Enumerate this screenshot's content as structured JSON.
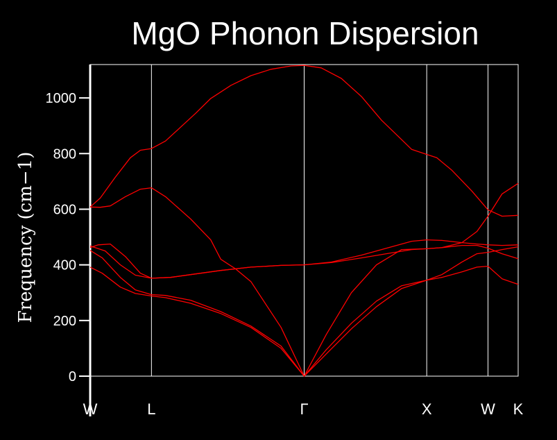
{
  "chart_data": {
    "type": "line",
    "title": "MgO Phonon Dispersion",
    "ylabel": "Frequency (cm−1)",
    "xlabel": "",
    "ylim": [
      0,
      1120
    ],
    "yticks": [
      0,
      200,
      400,
      600,
      800,
      1000
    ],
    "grid": false,
    "background": "#000000",
    "axis_color": "#ffffff",
    "line_color": "#ff0000",
    "high_symmetry_points": [
      {
        "label": "W",
        "x": 0.0
      },
      {
        "label": "L",
        "x": 0.61
      },
      {
        "label": "Γ",
        "x": 2.13
      },
      {
        "label": "X",
        "x": 3.35
      },
      {
        "label": "W",
        "x": 3.96
      },
      {
        "label": "K",
        "x": 4.26
      }
    ],
    "xlim": [
      0.0,
      4.26
    ],
    "series": [
      {
        "values": [
          [
            0.0,
            392
          ],
          [
            0.12,
            370
          ],
          [
            0.3,
            320
          ],
          [
            0.45,
            297
          ],
          [
            0.61,
            288
          ],
          [
            0.75,
            282
          ],
          [
            1.0,
            262
          ],
          [
            1.3,
            225
          ],
          [
            1.6,
            175
          ],
          [
            1.9,
            100
          ],
          [
            2.13,
            0
          ],
          [
            2.35,
            80
          ],
          [
            2.6,
            170
          ],
          [
            2.85,
            250
          ],
          [
            3.1,
            315
          ],
          [
            3.35,
            345
          ],
          [
            3.5,
            355
          ],
          [
            3.7,
            375
          ],
          [
            3.85,
            392
          ],
          [
            3.96,
            395
          ],
          [
            4.1,
            350
          ],
          [
            4.26,
            330
          ]
        ]
      },
      {
        "values": [
          [
            0.0,
            452
          ],
          [
            0.12,
            425
          ],
          [
            0.3,
            355
          ],
          [
            0.45,
            310
          ],
          [
            0.61,
            293
          ],
          [
            0.75,
            290
          ],
          [
            1.0,
            273
          ],
          [
            1.3,
            232
          ],
          [
            1.6,
            180
          ],
          [
            1.9,
            108
          ],
          [
            2.13,
            0
          ],
          [
            2.35,
            95
          ],
          [
            2.6,
            190
          ],
          [
            2.85,
            270
          ],
          [
            3.1,
            325
          ],
          [
            3.35,
            345
          ],
          [
            3.5,
            365
          ],
          [
            3.7,
            410
          ],
          [
            3.85,
            440
          ],
          [
            3.96,
            445
          ],
          [
            4.1,
            455
          ],
          [
            4.26,
            465
          ]
        ]
      },
      {
        "values": [
          [
            0.0,
            468
          ],
          [
            0.15,
            450
          ],
          [
            0.3,
            400
          ],
          [
            0.45,
            363
          ],
          [
            0.61,
            352
          ],
          [
            0.8,
            355
          ],
          [
            1.0,
            365
          ],
          [
            1.3,
            380
          ],
          [
            1.6,
            392
          ],
          [
            1.9,
            398
          ],
          [
            2.13,
            400
          ],
          [
            2.4,
            408
          ],
          [
            2.7,
            425
          ],
          [
            3.0,
            443
          ],
          [
            3.2,
            455
          ],
          [
            3.35,
            458
          ],
          [
            3.5,
            462
          ],
          [
            3.7,
            470
          ],
          [
            3.85,
            470
          ],
          [
            3.96,
            460
          ],
          [
            4.1,
            440
          ],
          [
            4.26,
            422
          ]
        ]
      },
      {
        "values": [
          [
            0.0,
            462
          ],
          [
            0.08,
            472
          ],
          [
            0.2,
            475
          ],
          [
            0.35,
            430
          ],
          [
            0.5,
            370
          ],
          [
            0.61,
            352
          ],
          [
            0.8,
            355
          ],
          [
            1.0,
            365
          ],
          [
            1.3,
            380
          ],
          [
            1.6,
            392
          ],
          [
            1.9,
            398
          ],
          [
            2.13,
            400
          ],
          [
            2.4,
            410
          ],
          [
            2.7,
            435
          ],
          [
            3.0,
            465
          ],
          [
            3.2,
            485
          ],
          [
            3.35,
            490
          ],
          [
            3.5,
            488
          ],
          [
            3.7,
            480
          ],
          [
            3.85,
            475
          ],
          [
            3.96,
            472
          ],
          [
            4.1,
            470
          ],
          [
            4.26,
            472
          ]
        ]
      },
      {
        "values": [
          [
            0.0,
            608
          ],
          [
            0.1,
            607
          ],
          [
            0.2,
            612
          ],
          [
            0.35,
            645
          ],
          [
            0.5,
            672
          ],
          [
            0.61,
            677
          ],
          [
            0.75,
            645
          ],
          [
            1.0,
            565
          ],
          [
            1.2,
            490
          ],
          [
            1.3,
            420
          ],
          [
            1.45,
            385
          ],
          [
            1.6,
            340
          ],
          [
            1.9,
            175
          ],
          [
            2.13,
            0
          ],
          [
            2.35,
            150
          ],
          [
            2.6,
            300
          ],
          [
            2.85,
            400
          ],
          [
            3.1,
            455
          ],
          [
            3.35,
            458
          ],
          [
            3.5,
            462
          ],
          [
            3.7,
            480
          ],
          [
            3.85,
            520
          ],
          [
            3.96,
            575
          ],
          [
            4.1,
            655
          ],
          [
            4.26,
            693
          ]
        ]
      },
      {
        "values": [
          [
            0.0,
            608
          ],
          [
            0.1,
            640
          ],
          [
            0.25,
            715
          ],
          [
            0.4,
            785
          ],
          [
            0.5,
            812
          ],
          [
            0.61,
            818
          ],
          [
            0.75,
            845
          ],
          [
            0.9,
            895
          ],
          [
            1.05,
            945
          ],
          [
            1.2,
            998
          ],
          [
            1.4,
            1045
          ],
          [
            1.6,
            1080
          ],
          [
            1.8,
            1103
          ],
          [
            2.0,
            1115
          ],
          [
            2.13,
            1117
          ],
          [
            2.3,
            1108
          ],
          [
            2.5,
            1070
          ],
          [
            2.7,
            1005
          ],
          [
            2.9,
            920
          ],
          [
            3.1,
            850
          ],
          [
            3.2,
            815
          ],
          [
            3.35,
            797
          ],
          [
            3.45,
            785
          ],
          [
            3.6,
            740
          ],
          [
            3.8,
            665
          ],
          [
            3.96,
            598
          ],
          [
            4.1,
            575
          ],
          [
            4.26,
            578
          ]
        ]
      }
    ]
  }
}
